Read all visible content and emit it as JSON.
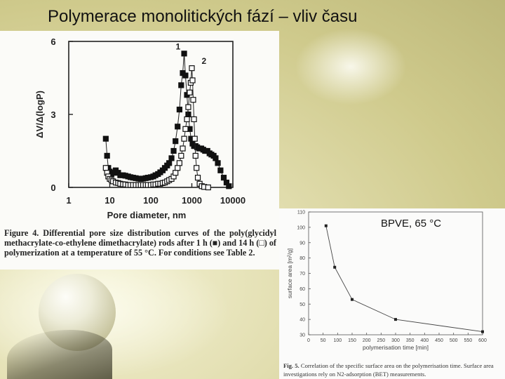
{
  "slide": {
    "title": "Polymerace monolitických fází – vliv času",
    "overlay_label": "BPVE, 65 °C"
  },
  "figure1": {
    "caption_label": "Figure 4.",
    "caption_text": "Differential pore size distribution curves of the poly(glycidyl methacrylate-co-ethylene dimethacrylate) rods after 1 h (■) and 14 h (□) of polymerization at a temperature of 55 °C. For conditions see Table 2."
  },
  "figure2": {
    "caption_label": "Fig. 5.",
    "caption_text": "Correlation of the specific surface area on the polymerisation time. Surface area investigations rely on N2-adsorption (BET) measurements."
  },
  "chart_data": [
    {
      "type": "scatter",
      "xlabel": "Pore diameter, nm",
      "ylabel": "ΔV/Δ(logP)",
      "x_scale": "log",
      "xlim": [
        1,
        10000
      ],
      "ylim": [
        0,
        6
      ],
      "x_ticks": [
        "1",
        "10",
        "100",
        "1000",
        "10000"
      ],
      "y_ticks": [
        "0",
        "3",
        "6"
      ],
      "grid": false,
      "series": [
        {
          "name": "1",
          "marker": "filled-square",
          "points": [
            [
              8,
              2.0
            ],
            [
              8.6,
              1.3
            ],
            [
              9.2,
              0.8
            ],
            [
              10,
              0.65
            ],
            [
              11,
              0.55
            ],
            [
              12,
              0.6
            ],
            [
              14,
              0.7
            ],
            [
              16,
              0.6
            ],
            [
              18,
              0.5
            ],
            [
              21,
              0.5
            ],
            [
              24,
              0.48
            ],
            [
              28,
              0.45
            ],
            [
              32,
              0.42
            ],
            [
              37,
              0.4
            ],
            [
              43,
              0.38
            ],
            [
              50,
              0.36
            ],
            [
              57,
              0.35
            ],
            [
              65,
              0.36
            ],
            [
              75,
              0.38
            ],
            [
              85,
              0.4
            ],
            [
              100,
              0.42
            ],
            [
              115,
              0.45
            ],
            [
              130,
              0.5
            ],
            [
              150,
              0.55
            ],
            [
              170,
              0.62
            ],
            [
              195,
              0.7
            ],
            [
              220,
              0.8
            ],
            [
              250,
              0.9
            ],
            [
              280,
              1.0
            ],
            [
              320,
              1.2
            ],
            [
              360,
              1.5
            ],
            [
              400,
              1.9
            ],
            [
              450,
              2.5
            ],
            [
              500,
              3.2
            ],
            [
              550,
              4.2
            ],
            [
              600,
              4.7
            ],
            [
              650,
              5.5
            ],
            [
              700,
              4.6
            ],
            [
              760,
              3.8
            ],
            [
              820,
              3.0
            ],
            [
              890,
              2.4
            ],
            [
              960,
              2.0
            ],
            [
              1040,
              1.8
            ],
            [
              1130,
              1.7
            ],
            [
              1230,
              1.7
            ],
            [
              1350,
              1.65
            ],
            [
              1500,
              1.6
            ],
            [
              1700,
              1.6
            ],
            [
              1900,
              1.55
            ],
            [
              2100,
              1.5
            ],
            [
              2400,
              1.5
            ],
            [
              2700,
              1.4
            ],
            [
              3000,
              1.35
            ],
            [
              3400,
              1.3
            ],
            [
              3800,
              1.2
            ],
            [
              4300,
              1.0
            ],
            [
              5000,
              0.7
            ],
            [
              6000,
              0.4
            ],
            [
              7000,
              0.2
            ],
            [
              8000,
              0.05
            ]
          ]
        },
        {
          "name": "2",
          "marker": "open-square",
          "points": [
            [
              8,
              0.8
            ],
            [
              8.6,
              0.6
            ],
            [
              9.2,
              0.45
            ],
            [
              10,
              0.35
            ],
            [
              11,
              0.3
            ],
            [
              12,
              0.25
            ],
            [
              14,
              0.2
            ],
            [
              16,
              0.18
            ],
            [
              18,
              0.15
            ],
            [
              21,
              0.13
            ],
            [
              24,
              0.12
            ],
            [
              28,
              0.1
            ],
            [
              32,
              0.1
            ],
            [
              37,
              0.1
            ],
            [
              43,
              0.1
            ],
            [
              50,
              0.1
            ],
            [
              57,
              0.1
            ],
            [
              65,
              0.1
            ],
            [
              75,
              0.1
            ],
            [
              85,
              0.1
            ],
            [
              100,
              0.1
            ],
            [
              115,
              0.12
            ],
            [
              130,
              0.12
            ],
            [
              150,
              0.15
            ],
            [
              170,
              0.15
            ],
            [
              195,
              0.18
            ],
            [
              220,
              0.2
            ],
            [
              250,
              0.25
            ],
            [
              280,
              0.3
            ],
            [
              320,
              0.35
            ],
            [
              360,
              0.45
            ],
            [
              400,
              0.6
            ],
            [
              450,
              0.8
            ],
            [
              500,
              1.0
            ],
            [
              550,
              1.3
            ],
            [
              600,
              1.6
            ],
            [
              650,
              2.0
            ],
            [
              700,
              2.4
            ],
            [
              760,
              2.8
            ],
            [
              820,
              3.3
            ],
            [
              890,
              3.9
            ],
            [
              940,
              4.3
            ],
            [
              1000,
              4.9
            ],
            [
              1040,
              4.4
            ],
            [
              1080,
              3.6
            ],
            [
              1130,
              2.8
            ],
            [
              1180,
              2.0
            ],
            [
              1230,
              1.3
            ],
            [
              1300,
              0.8
            ],
            [
              1400,
              0.4
            ],
            [
              1550,
              0.15
            ],
            [
              1750,
              0.05
            ],
            [
              2000,
              0.02
            ],
            [
              2500,
              0.0
            ]
          ]
        }
      ]
    },
    {
      "type": "line",
      "xlabel": "polymerisation time [min]",
      "ylabel": "surface area [m²/g]",
      "xlim": [
        0,
        600
      ],
      "ylim": [
        30,
        110
      ],
      "x_ticks": [
        "0",
        "50",
        "100",
        "150",
        "200",
        "250",
        "300",
        "350",
        "400",
        "450",
        "500",
        "550",
        "600"
      ],
      "y_ticks": [
        "30",
        "40",
        "50",
        "60",
        "70",
        "80",
        "90",
        "100",
        "110"
      ],
      "grid": false,
      "series": [
        {
          "x": [
            60,
            90,
            150,
            300,
            600
          ],
          "y": [
            101,
            74,
            53,
            40,
            32
          ]
        }
      ]
    }
  ]
}
